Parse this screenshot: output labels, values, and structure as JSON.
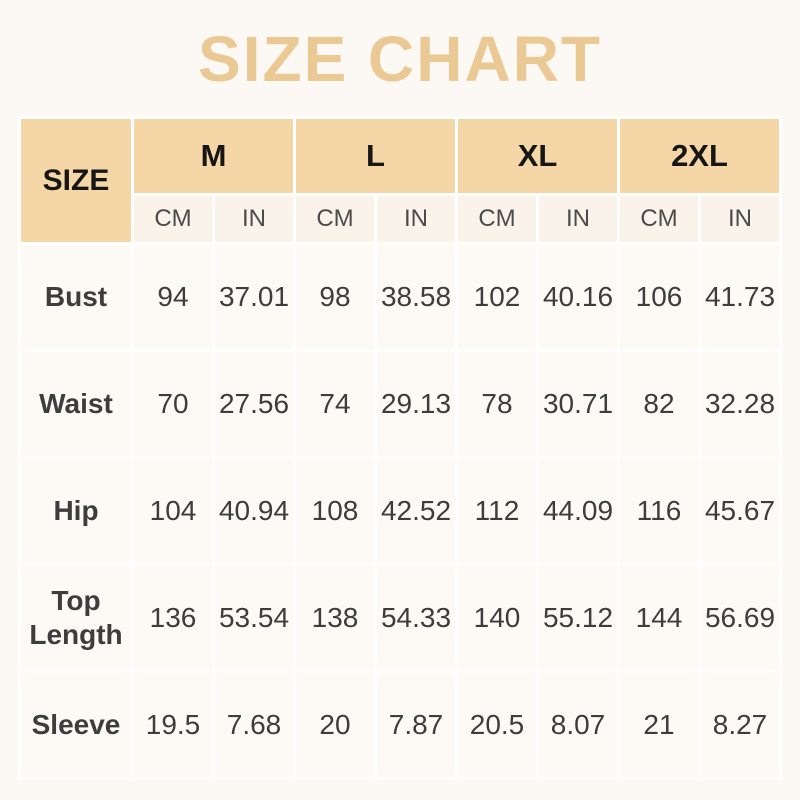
{
  "page": {
    "background": "#FCF9F4",
    "title_color": "#EBC994"
  },
  "chart_data": {
    "type": "table",
    "title": "SIZE CHART",
    "corner_label": "SIZE",
    "size_headers": [
      "M",
      "L",
      "XL",
      "2XL"
    ],
    "unit_headers": [
      "CM",
      "IN"
    ],
    "rows": [
      {
        "label": "Bust",
        "values": [
          "94",
          "37.01",
          "98",
          "38.58",
          "102",
          "40.16",
          "106",
          "41.73"
        ]
      },
      {
        "label": "Waist",
        "values": [
          "70",
          "27.56",
          "74",
          "29.13",
          "78",
          "30.71",
          "82",
          "32.28"
        ]
      },
      {
        "label": "Hip",
        "values": [
          "104",
          "40.94",
          "108",
          "42.52",
          "112",
          "44.09",
          "116",
          "45.67"
        ]
      },
      {
        "label": "Top Length",
        "values": [
          "136",
          "53.54",
          "138",
          "54.33",
          "140",
          "55.12",
          "144",
          "56.69"
        ]
      },
      {
        "label": "Sleeve",
        "values": [
          "19.5",
          "7.68",
          "20",
          "7.87",
          "20.5",
          "8.07",
          "21",
          "8.27"
        ]
      }
    ],
    "colors": {
      "header_bg": "#F5D7A7",
      "subheader_bg": "#FAF3E9",
      "label_column_bg": "#FDF6EC",
      "cell_bg": "#FDFAF5",
      "gap": "#FFFFFF",
      "header_text": "#161616",
      "unit_text": "#4B4B4B",
      "value_text": "#3D3D3D"
    }
  }
}
